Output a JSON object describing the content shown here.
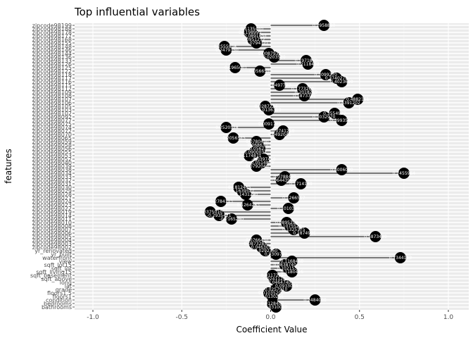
{
  "chart_data": {
    "type": "lollipop",
    "title": "Top influential variables",
    "xlabel": "Coefficient Value",
    "ylabel": "features",
    "xlim": [
      -1.0,
      1.0
    ],
    "xticks": [
      -1.0,
      -0.5,
      0.0,
      0.5,
      1.0
    ],
    "xtick_labels": [
      "-1.0",
      "-0.5",
      "0.0",
      "0.5",
      "1.0"
    ],
    "grid": true,
    "background": "#ebebeb",
    "point_color": "#000000",
    "categories": [
      "zipcode98199",
      "zipcode98188",
      "zipcode98178",
      "zipcode98177",
      "zipcode98168",
      "zipcode98155",
      "zipcode98148",
      "zipcode98146",
      "zipcode98144",
      "zipcode98136",
      "zipcode98133",
      "zipcode98126",
      "zipcode98125",
      "zipcode98122",
      "zipcode98118",
      "zipcode98117",
      "zipcode98116",
      "zipcode98115",
      "zipcode98112",
      "zipcode98109",
      "zipcode98108",
      "zipcode98107",
      "zipcode98106",
      "zipcode98105",
      "zipcode98103",
      "zipcode98102",
      "zipcode98092",
      "zipcode98077",
      "zipcode98075",
      "zipcode98074",
      "zipcode98072",
      "zipcode98070",
      "zipcode98065",
      "zipcode98059",
      "zipcode98058",
      "zipcode98056",
      "zipcode98055",
      "zipcode98053",
      "zipcode98052",
      "zipcode98040",
      "zipcode98039",
      "zipcode98038",
      "zipcode98034",
      "zipcode98033",
      "zipcode98032",
      "zipcode98031",
      "zipcode98030",
      "zipcode98029",
      "zipcode98028",
      "zipcode98027",
      "zipcode98024",
      "zipcode98023",
      "zipcode98022",
      "zipcode98019",
      "zipcode98014",
      "zipcode98011",
      "zipcode98010",
      "zipcode98008",
      "zipcode98007",
      "zipcode98006",
      "zipcode98005",
      "zipcode98004",
      "zipcode98003",
      "zipcode98002",
      "yr_renovated",
      "yr_built",
      "waterfront",
      "view",
      "sqft_lot15",
      "sqft_lot",
      "sqft_living15",
      "sqft_basement",
      "sqft_above",
      "long",
      "lat",
      "grade",
      "floors1.5",
      "floors1",
      "condition",
      "bedrooms",
      "bathrooms"
    ],
    "values": [
      0.3,
      -0.11,
      -0.12,
      -0.09,
      -0.1,
      -0.08,
      -0.26,
      -0.25,
      -0.01,
      0.02,
      0.2,
      0.21,
      -0.2,
      -0.06,
      0.31,
      0.37,
      0.4,
      0.05,
      0.18,
      0.2,
      0.19,
      0.49,
      0.44,
      -0.03,
      -0.01,
      0.36,
      0.3,
      0.4,
      -0.01,
      -0.25,
      0.07,
      0.05,
      -0.21,
      -0.08,
      -0.07,
      -0.06,
      -0.09,
      -0.12,
      -0.04,
      -0.05,
      -0.08,
      0.4,
      0.75,
      0.08,
      0.06,
      0.17,
      -0.18,
      -0.16,
      -0.14,
      0.13,
      -0.28,
      -0.13,
      0.1,
      -0.34,
      -0.29,
      -0.22,
      0.09,
      0.11,
      0.13,
      0.19,
      0.59,
      -0.08,
      -0.09,
      -0.05,
      -0.03,
      0.03,
      0.73,
      0.12,
      0.08,
      0.1,
      0.12,
      0.01,
      0.02,
      0.05,
      0.09,
      0.03,
      -0.01,
      0.01,
      0.25,
      0.01,
      0.03
    ],
    "point_labels": [
      "0.2958880",
      "-0.1135440",
      "-0.1198993",
      "-0.0891854",
      "-0.0951272",
      "-0.0794321",
      "-0.2555838",
      "-0.2479350",
      "-0.0087932",
      "0.0203530",
      "0.1971860",
      "0.2118493",
      "-0.1965001",
      "-0.0566540",
      "0.3099270",
      "0.3740278",
      "0.4023610",
      "0.0497729",
      "0.1773260",
      "0.2018219",
      "0.1873785",
      "0.4882161",
      "0.4391202",
      "-0.0287224",
      "-0.0136313",
      "0.3554927",
      "0.3032970",
      "0.3993501",
      "-0.0091738",
      "-0.2520528",
      "0.0741250",
      "0.0492041",
      "-0.2056545",
      "-0.0780450",
      "-0.0686340",
      "-0.0562301",
      "-0.0900032",
      "-0.1174871",
      "-0.0397450",
      "-0.0514870",
      "-0.0792040",
      "0.4006009",
      "0.7455964",
      "0.0788439",
      "0.0644390",
      "0.1714148",
      "-0.1812465",
      "-0.1639527",
      "-0.1431290",
      "0.1266557",
      "-0.2784113",
      "-0.1264283",
      "0.1010328",
      "-0.3375010",
      "-0.2935421",
      "-0.2165260",
      "0.0895290",
      "0.1075529",
      "0.1325175",
      "0.1874936",
      "0.5873430",
      "-0.0766454",
      "-0.0873285",
      "-0.0463015",
      "-0.0292360",
      "0.0309771",
      "0.7344153",
      "0.1168460",
      "0.0838740",
      "0.1021553",
      "0.1180416",
      "0.0117255",
      "0.0241120",
      "0.0464740",
      "0.0933004",
      "0.0257910",
      "-0.0103520",
      "0.0130255",
      "0.2484088",
      "0.0128407",
      "0.0310089"
    ]
  }
}
